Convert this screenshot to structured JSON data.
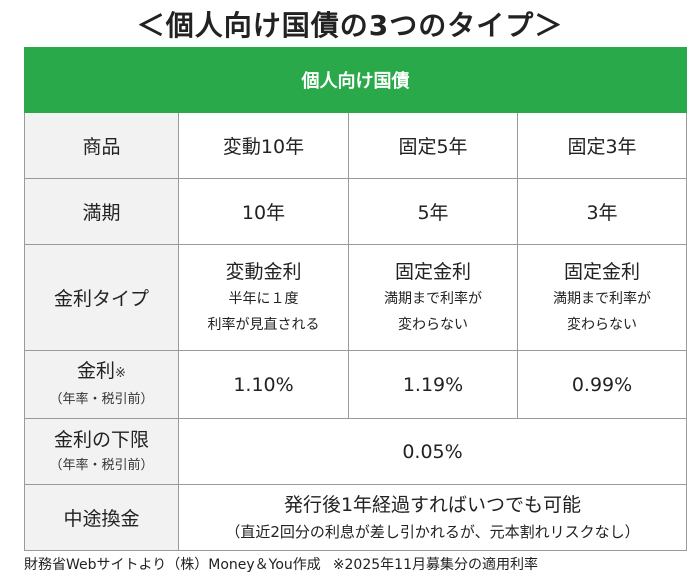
{
  "title": "＜個人向け国債の3つのタイプ＞",
  "table": {
    "header": "個人向け国債",
    "rows": {
      "product": {
        "label": "商品",
        "values": [
          "変動10年",
          "固定5年",
          "固定3年"
        ]
      },
      "maturity": {
        "label": "満期",
        "values": [
          "10年",
          "5年",
          "3年"
        ]
      },
      "rate_type": {
        "label": "金利タイプ",
        "values": [
          {
            "main": "変動金利",
            "line1": "半年に１度",
            "line2": "利率が見直される"
          },
          {
            "main": "固定金利",
            "line1": "満期まで利率が",
            "line2": "変わらない"
          },
          {
            "main": "固定金利",
            "line1": "満期まで利率が",
            "line2": "変わらない"
          }
        ]
      },
      "rate": {
        "label": "金利",
        "mark": "※",
        "sublabel": "（年率・税引前）",
        "values": [
          "1.10%",
          "1.19%",
          "0.99%"
        ]
      },
      "min_rate": {
        "label": "金利の下限",
        "sublabel": "（年率・税引前）",
        "value": "0.05%"
      },
      "early_redemption": {
        "label": "中途換金",
        "line1": "発行後1年経過すればいつでも可能",
        "line2": "（直近2回分の利息が差し引かれるが、元本割れリスクなし）"
      }
    }
  },
  "footer": {
    "source": "財務省Webサイトより（株）Money＆You作成",
    "note": "※2025年11月募集分の適用利率"
  },
  "colors": {
    "header_green": "#29a94a",
    "row_header_gray": "#f2f2f2"
  }
}
